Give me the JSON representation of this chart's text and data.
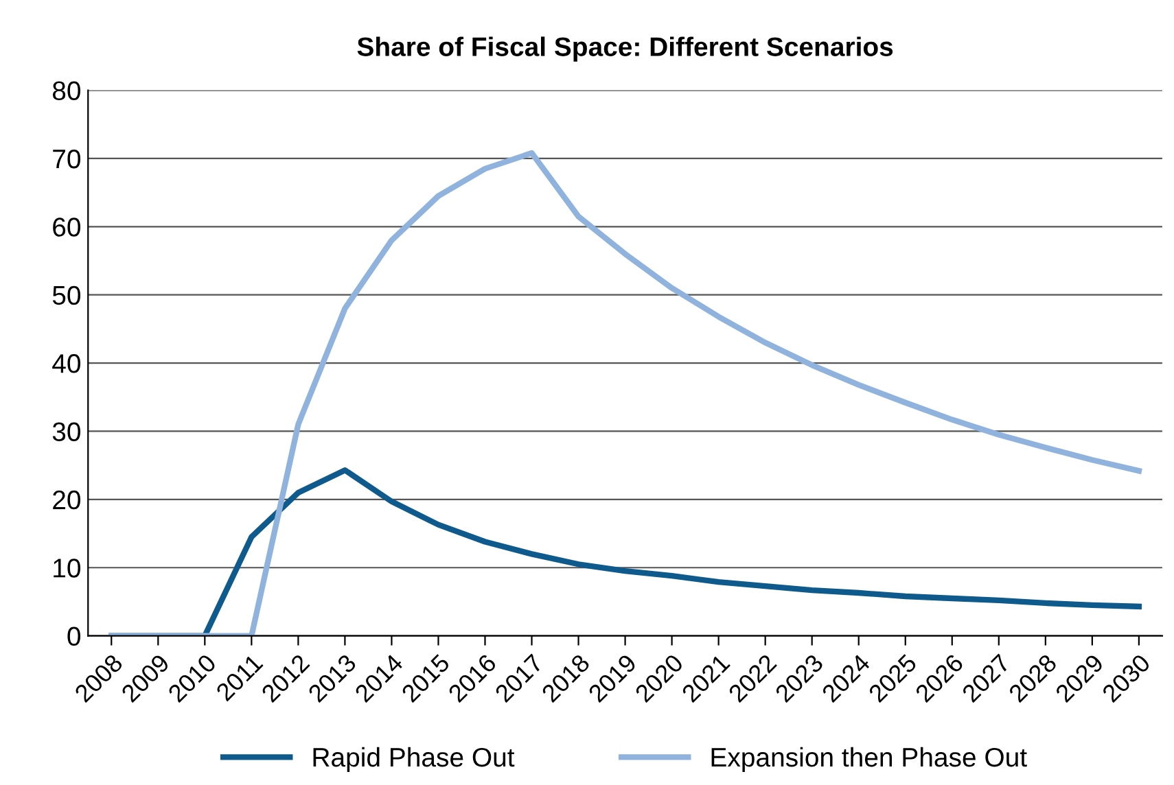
{
  "chart_data": {
    "type": "line",
    "title": "Share of Fiscal Space: Different Scenarios",
    "categories": [
      "2008",
      "2009",
      "2010",
      "2011",
      "2012",
      "2013",
      "2014",
      "2015",
      "2016",
      "2017",
      "2018",
      "2019",
      "2020",
      "2021",
      "2022",
      "2023",
      "2024",
      "2025",
      "2026",
      "2027",
      "2028",
      "2029",
      "2030"
    ],
    "series": [
      {
        "name": "Rapid Phase Out",
        "color": "#0f5a8c",
        "values": [
          0,
          0,
          0,
          14.5,
          21,
          24.3,
          19.7,
          16.3,
          13.8,
          12,
          10.5,
          9.5,
          8.8,
          7.9,
          7.3,
          6.7,
          6.3,
          5.8,
          5.5,
          5.2,
          4.8,
          4.5,
          4.3
        ]
      },
      {
        "name": "Expansion then Phase Out",
        "color": "#8fb3dd",
        "values": [
          0,
          0,
          0,
          0,
          31,
          48,
          58,
          64.5,
          68.5,
          70.8,
          61.5,
          56,
          51,
          46.8,
          43,
          39.7,
          36.8,
          34.2,
          31.7,
          29.5,
          27.6,
          25.8,
          24.2
        ]
      }
    ],
    "ylim": [
      0,
      80
    ],
    "yticks": [
      0,
      10,
      20,
      30,
      40,
      50,
      60,
      70,
      80
    ],
    "grid": "y",
    "legend": "bottom",
    "marker": "none",
    "line_style": "solid"
  }
}
